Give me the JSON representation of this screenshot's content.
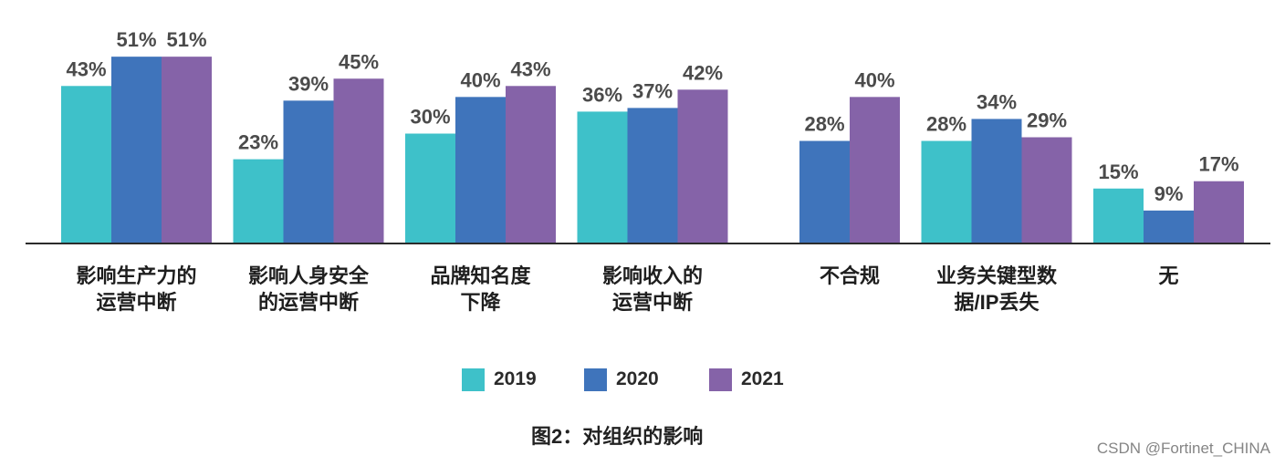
{
  "chart_data": {
    "type": "bar",
    "title": "图2：对组织的影响",
    "categories": [
      "影响生产力的\n运营中断",
      "影响人身安全\n的运营中断",
      "品牌知名度\n下降",
      "影响收入的\n运营中断",
      "不合规",
      "业务关键型数\n据/IP丢失",
      "无"
    ],
    "series": [
      {
        "name": "2019",
        "color": "#3ec1c9",
        "values": [
          43,
          23,
          30,
          36,
          null,
          28,
          15
        ]
      },
      {
        "name": "2020",
        "color": "#3f74bb",
        "values": [
          51,
          39,
          40,
          37,
          28,
          34,
          9
        ]
      },
      {
        "name": "2021",
        "color": "#8563a8",
        "values": [
          51,
          45,
          43,
          42,
          40,
          29,
          17
        ]
      }
    ],
    "unit": "%",
    "ylim": [
      0,
      60
    ],
    "grid": false,
    "legend_position": "bottom",
    "data_labels": true
  },
  "watermark": "CSDN @Fortinet_CHINA"
}
